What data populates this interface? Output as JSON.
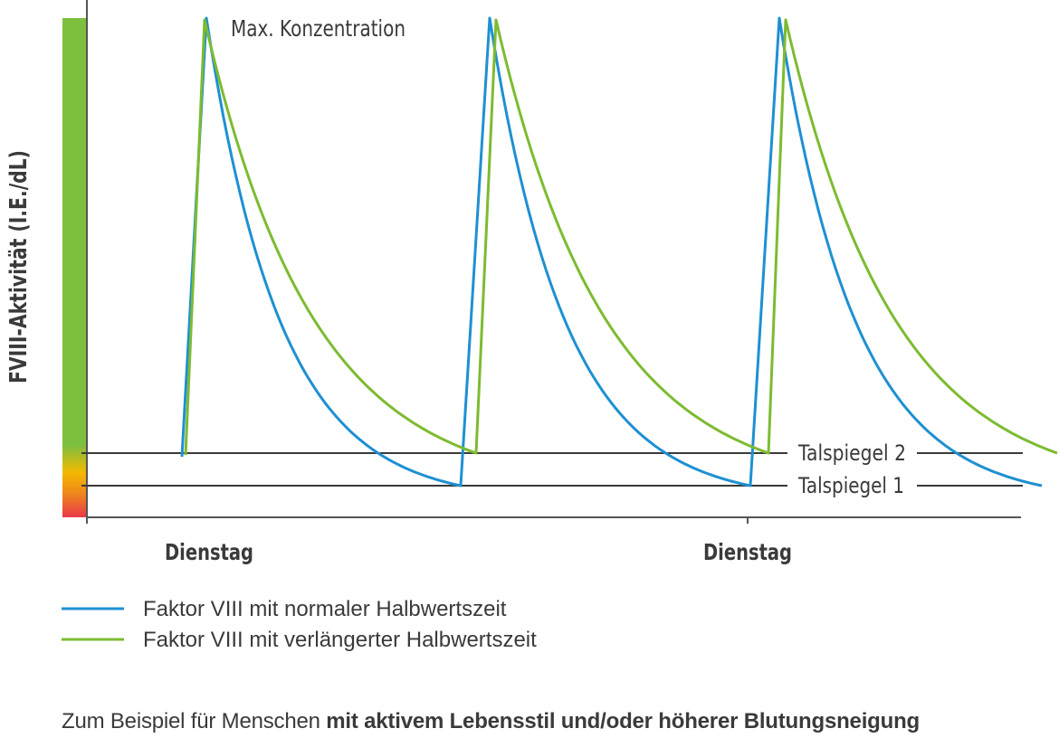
{
  "chart_data": {
    "type": "line",
    "ylabel": "FVIII-Aktivität (I.E./dL)",
    "x_tick_labels": [
      "Dienstag",
      "Dienstag"
    ],
    "annotations": {
      "peak": "Max. Konzentration",
      "trough_2": "Talspiegel 2",
      "trough_1": "Talspiegel 1"
    },
    "series": [
      {
        "name": "Faktor VIII mit normaler Halbwertszeit",
        "color": "#1e90d2"
      },
      {
        "name": "Faktor VIII mit verlängerter Halbwertszeit",
        "color": "#7dbb31"
      }
    ],
    "activity_scale_colors": [
      "#7dbf3f",
      "#f2b900",
      "#e8394a"
    ],
    "grid": false,
    "legend_position": "bottom-left"
  },
  "footer": {
    "text_regular": "Zum Beispiel für Menschen ",
    "text_bold": "mit aktivem Lebensstil und/oder höherer Blutungsneigung"
  }
}
